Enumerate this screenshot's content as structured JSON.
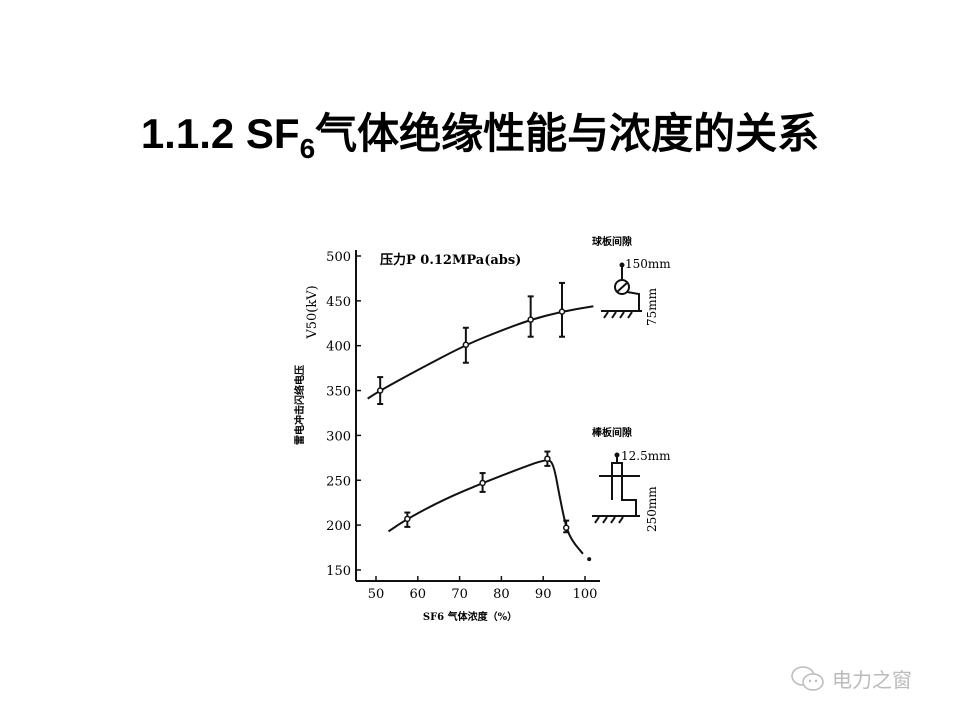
{
  "slide": {
    "title_prefix": "1.1.2 SF",
    "title_sub": "6",
    "title_suffix": "气体绝缘性能与浓度的关系"
  },
  "watermark": {
    "text": "电力之窗",
    "icon": "wechat-icon"
  },
  "chart_data": {
    "type": "line",
    "annotation": "压力P 0.12MPa(abs)",
    "xlabel": "SF6 气体浓度（%）",
    "ylabel": "雷电冲击闪络电压",
    "ylabel2": "V50(kV)",
    "xlim": [
      45,
      103
    ],
    "ylim": [
      145,
      505
    ],
    "xticks": [
      50,
      60,
      70,
      80,
      90,
      100
    ],
    "yticks": [
      150,
      200,
      250,
      300,
      350,
      400,
      450,
      500
    ],
    "grid": false,
    "series": [
      {
        "name": "球板间隙",
        "inset_labels": [
          "150mm",
          "75mm"
        ],
        "points": [
          {
            "x": 51,
            "y": 350,
            "lo": 335,
            "hi": 365
          },
          {
            "x": 71.5,
            "y": 401,
            "lo": 381,
            "hi": 420
          },
          {
            "x": 87,
            "y": 429,
            "lo": 410,
            "hi": 455
          },
          {
            "x": 94.5,
            "y": 438,
            "lo": 410,
            "hi": 470
          }
        ],
        "curve": [
          [
            48,
            341
          ],
          [
            51,
            350
          ],
          [
            60,
            373
          ],
          [
            71.5,
            401
          ],
          [
            80,
            417
          ],
          [
            87,
            429
          ],
          [
            94.5,
            438
          ],
          [
            102,
            444
          ]
        ]
      },
      {
        "name": "棒板间隙",
        "inset_labels": [
          "12.5mm",
          "250mm"
        ],
        "points": [
          {
            "x": 57.5,
            "y": 207,
            "lo": 198,
            "hi": 214
          },
          {
            "x": 75.5,
            "y": 247,
            "lo": 237,
            "hi": 258
          },
          {
            "x": 91,
            "y": 274,
            "lo": 266,
            "hi": 282
          },
          {
            "x": 95.5,
            "y": 197,
            "lo": 192,
            "hi": 205
          },
          {
            "x": 101,
            "y": 162
          }
        ],
        "curve": [
          [
            53,
            193
          ],
          [
            57.5,
            207
          ],
          [
            66,
            228
          ],
          [
            75.5,
            247
          ],
          [
            85,
            264
          ],
          [
            91,
            274
          ],
          [
            92.5,
            268
          ],
          [
            94,
            230
          ],
          [
            95.5,
            197
          ],
          [
            97,
            182
          ],
          [
            99.5,
            168
          ]
        ]
      }
    ]
  }
}
